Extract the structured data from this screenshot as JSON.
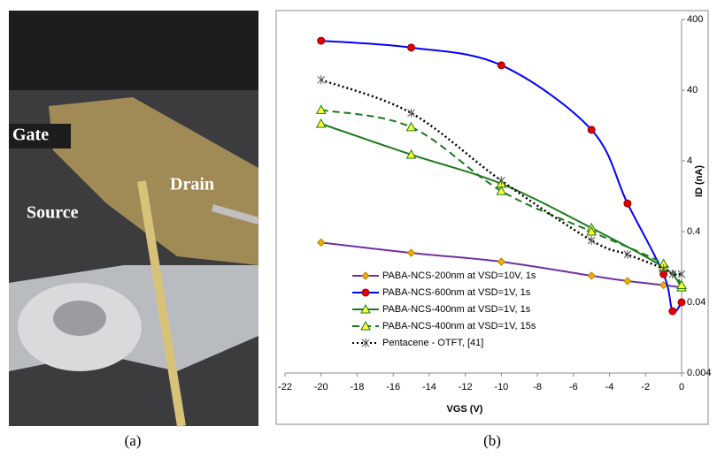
{
  "panel_a": {
    "labels": [
      "Gate",
      "Source",
      "Drain"
    ],
    "caption": "(a)"
  },
  "caption_b": "(b)",
  "chart_data": {
    "type": "line",
    "xlabel": "VGS (V)",
    "ylabel": "ID (nA)",
    "xlim": [
      -22,
      0
    ],
    "xticks": [
      -22,
      -20,
      -18,
      -16,
      -14,
      -12,
      -10,
      -8,
      -6,
      -4,
      -2,
      0
    ],
    "ylim": [
      0.004,
      400
    ],
    "yticks": [
      0.004,
      0.04,
      0.4,
      4,
      40,
      400
    ],
    "ylog": true,
    "yaxis_side": "right",
    "legend": "lower-left",
    "series": [
      {
        "name": "PABA-NCS-200nm at VSD=10V, 1s",
        "color": "#7030a0",
        "marker": "diamond",
        "marker_color": "#f0b000",
        "dash": "solid",
        "x": [
          -20,
          -15,
          -10,
          -5,
          -3,
          -1,
          0
        ],
        "values": [
          0.28,
          0.2,
          0.15,
          0.095,
          0.08,
          0.07,
          0.065
        ]
      },
      {
        "name": "PABA-NCS-600nm at VSD=1V, 1s",
        "color": "#0000ff",
        "marker": "circle",
        "marker_color": "#e00000",
        "dash": "solid",
        "x": [
          -20,
          -15,
          -10,
          -5,
          -3,
          -1,
          -0.5,
          0
        ],
        "values": [
          200,
          160,
          90,
          11,
          1,
          0.1,
          0.03,
          0.04
        ]
      },
      {
        "name": "PABA-NCS-400nm at VSD=1V, 1s",
        "color": "#1a7a1a",
        "marker": "triangle",
        "marker_color": "#ffff33",
        "dash": "solid",
        "x": [
          -20,
          -15,
          -10,
          -5,
          -1,
          0
        ],
        "values": [
          13.4,
          4.9,
          1.9,
          0.45,
          0.125,
          0.065
        ]
      },
      {
        "name": "PABA-NCS-400nm at VSD=1V, 15s",
        "color": "#1a7a1a",
        "marker": "triangle",
        "marker_color": "#ffff33",
        "dash": "dashed",
        "x": [
          -20,
          -15,
          -10,
          -5,
          -1,
          0
        ],
        "values": [
          21,
          12,
          1.5,
          0.4,
          0.14,
          0.07
        ]
      },
      {
        "name": "Pentacene - OTFT, [41]",
        "color": "#000000",
        "marker": "asterisk",
        "marker_color": "#555555",
        "dash": "dotted",
        "x": [
          -20,
          -15,
          -10,
          -5,
          -3,
          -1,
          -0.5,
          0
        ],
        "values": [
          56,
          19,
          2.1,
          0.3,
          0.19,
          0.12,
          0.1,
          0.1
        ]
      }
    ]
  }
}
